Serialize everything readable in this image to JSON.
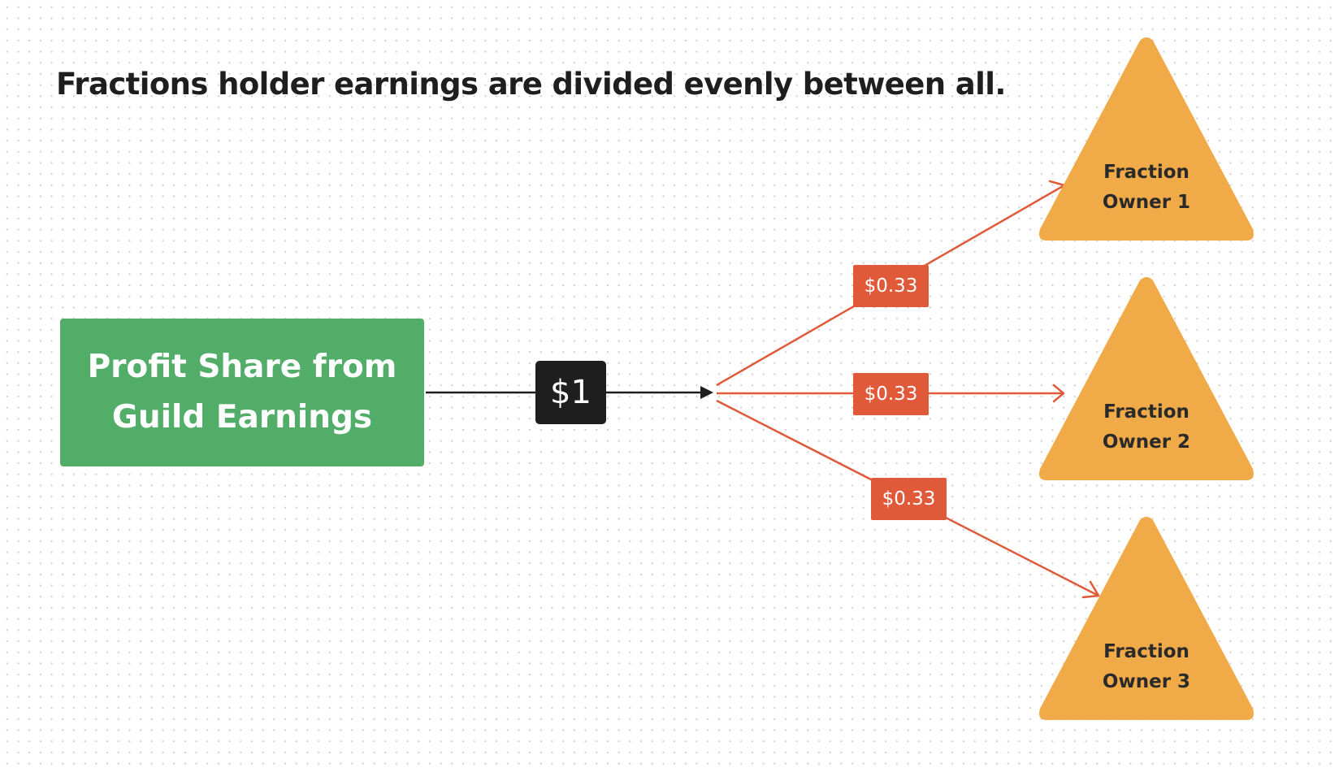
{
  "title": "Fractions holder earnings are divided evenly between all.",
  "source": {
    "line1": "Profit Share from",
    "line2": "Guild Earnings"
  },
  "input_amount": "$1",
  "shares": [
    {
      "amount": "$0.33"
    },
    {
      "amount": "$0.33"
    },
    {
      "amount": "$0.33"
    }
  ],
  "owners": [
    {
      "line1": "Fraction",
      "line2": "Owner 1"
    },
    {
      "line1": "Fraction",
      "line2": "Owner 2"
    },
    {
      "line1": "Fraction",
      "line2": "Owner 3"
    }
  ],
  "colors": {
    "source_fill": "#52ad68",
    "owner_fill": "#f0aa48",
    "share_fill": "#e05a3a",
    "amount_fill": "#1e1e1e",
    "connector_main": "#1e1e1e",
    "connector_split": "#e05a3a"
  }
}
